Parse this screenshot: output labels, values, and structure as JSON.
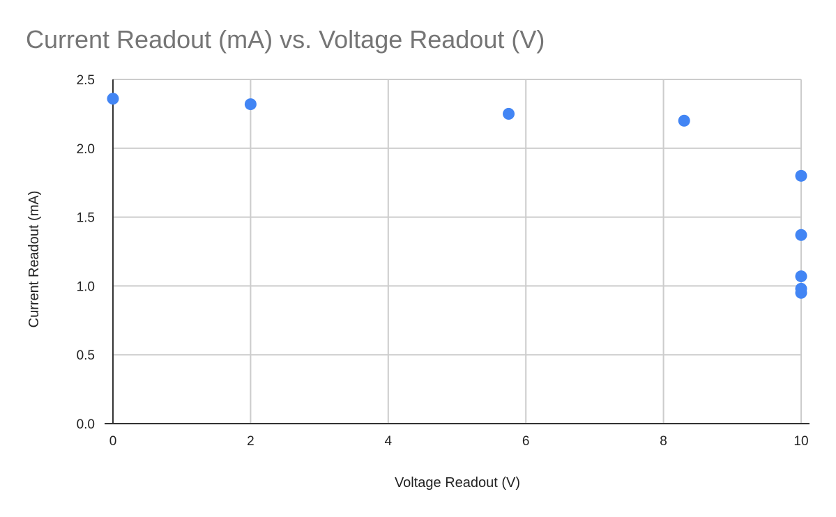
{
  "chart_data": {
    "type": "scatter",
    "title": "Current Readout (mA) vs. Voltage Readout (V)",
    "xlabel": "Voltage Readout (V)",
    "ylabel": "Current Readout (mA)",
    "xlim": [
      0,
      10
    ],
    "ylim": [
      0,
      2.5
    ],
    "x_ticks": [
      "0",
      "2",
      "4",
      "6",
      "8",
      "10"
    ],
    "y_ticks": [
      "0.0",
      "0.5",
      "1.0",
      "1.5",
      "2.0",
      "2.5"
    ],
    "grid": true,
    "legend": "none",
    "series": [
      {
        "color": "#4285F4",
        "points": [
          {
            "x": 0.0,
            "y": 2.36
          },
          {
            "x": 2.0,
            "y": 2.32
          },
          {
            "x": 5.75,
            "y": 2.25
          },
          {
            "x": 8.3,
            "y": 2.2
          },
          {
            "x": 10.0,
            "y": 1.8
          },
          {
            "x": 10.0,
            "y": 1.37
          },
          {
            "x": 10.0,
            "y": 1.07
          },
          {
            "x": 10.0,
            "y": 0.98
          },
          {
            "x": 10.0,
            "y": 0.95
          }
        ]
      }
    ]
  }
}
